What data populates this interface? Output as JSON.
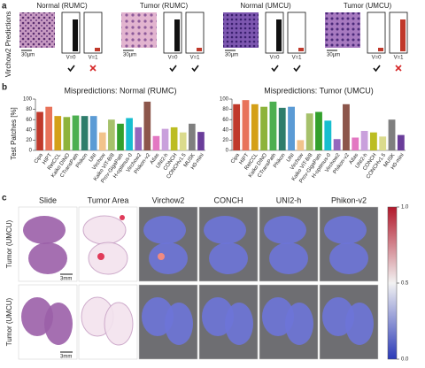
{
  "panel_labels": [
    "a",
    "b",
    "c"
  ],
  "panel_a": {
    "ylabel": "Virchow2 Predictions",
    "scale": "30µm",
    "groups": [
      {
        "title": "Normal (RUMC)",
        "labels": [
          "V=0",
          "V=1"
        ]
      },
      {
        "title": "Tumor (RUMC)",
        "labels": [
          "V=0",
          "V=1"
        ]
      },
      {
        "title": "Normal (UMCU)",
        "labels": [
          "V=0",
          "V=1"
        ]
      },
      {
        "title": "Tumor (UMCU)",
        "labels": [
          "V=0",
          "V=1"
        ]
      }
    ]
  },
  "chart_data": [
    {
      "type": "bar",
      "title": "Mispredictions: Normal (RUMC)",
      "ylabel": "Test Patches [%]",
      "categories": [
        "Cipa",
        "HIPT",
        "RetCCL",
        "Kaiko DINO",
        "CTransPath",
        "Phikon",
        "UNI",
        "Virchow",
        "Kaiko ViT-B/8",
        "Prov-GigaPath",
        "H-optimus-0",
        "Virchow2",
        "Phikon-v2",
        "Atlas",
        "UNI2-h",
        "CONCH",
        "CONCHv1.5",
        "MUSK",
        "H0-mini"
      ],
      "values": [
        75,
        85,
        67,
        65,
        68,
        67,
        67,
        35,
        60,
        52,
        63,
        45,
        95,
        28,
        42,
        45,
        35,
        52,
        36
      ],
      "colors": [
        "#c0392b",
        "#e8735a",
        "#d4a017",
        "#8db33a",
        "#4caf50",
        "#2e7d6b",
        "#5b9bd5",
        "#f2c38b",
        "#a6c16b",
        "#33a02c",
        "#17becf",
        "#9467bd",
        "#8c564b",
        "#e377c2",
        "#c9a0dc",
        "#bcbd22",
        "#dbdb8d",
        "#7f7f7f",
        "#6a3d9a"
      ],
      "ylim": [
        0,
        100
      ],
      "yticks": [
        0,
        20,
        40,
        60,
        80,
        100
      ]
    },
    {
      "type": "bar",
      "title": "Mispredictions: Tumor (UMCU)",
      "categories": [
        "Cipa",
        "HIPT",
        "RetCCL",
        "Kaiko DINO",
        "CTransPath",
        "Phikon",
        "UNI",
        "Virchow",
        "Kaiko ViT-B/8",
        "Prov-GigaPath",
        "H-optimus-0",
        "Virchow2",
        "Phikon-v2",
        "Atlas",
        "UNI2-h",
        "CONCH",
        "CONCHv1.5",
        "MUSK",
        "H0-mini"
      ],
      "values": [
        90,
        98,
        90,
        85,
        95,
        83,
        85,
        20,
        72,
        75,
        58,
        22,
        90,
        25,
        38,
        35,
        27,
        60,
        30
      ],
      "colors": [
        "#c0392b",
        "#e8735a",
        "#d4a017",
        "#8db33a",
        "#4caf50",
        "#2e7d6b",
        "#5b9bd5",
        "#f2c38b",
        "#a6c16b",
        "#33a02c",
        "#17becf",
        "#9467bd",
        "#8c564b",
        "#e377c2",
        "#c9a0dc",
        "#bcbd22",
        "#dbdb8d",
        "#7f7f7f",
        "#6a3d9a"
      ],
      "ylim": [
        0,
        100
      ],
      "yticks": [
        0,
        20,
        40,
        60,
        80,
        100
      ]
    }
  ],
  "panel_c": {
    "columns": [
      "Slide",
      "Tumor Area",
      "Virchow2",
      "CONCH",
      "UNI2-h",
      "Phikon-v2"
    ],
    "rows": [
      "Tumor (UMCU)",
      "Tumor (UMCU)"
    ],
    "scale": "3mm",
    "colorbar_ticks": [
      {
        "value": 1,
        "label": "1.0"
      },
      {
        "value": 0.5,
        "label": "0.5"
      },
      {
        "value": 0,
        "label": "0.0"
      }
    ]
  }
}
